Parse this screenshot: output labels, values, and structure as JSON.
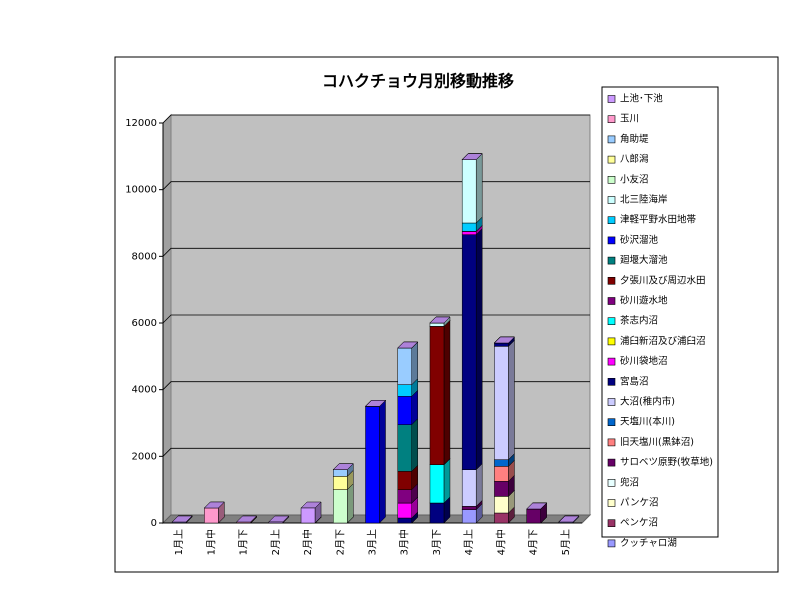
{
  "chart_data": {
    "type": "stacked-bar-3d",
    "title": "コハクチョウ月別移動推移",
    "categories": [
      "1月上",
      "1月中",
      "1月下",
      "2月上",
      "2月中",
      "2月下",
      "3月上",
      "3月中",
      "3月下",
      "4月上",
      "4月中",
      "4月下",
      "5月上"
    ],
    "ylim": [
      0,
      12000
    ],
    "yticks": [
      0,
      2000,
      4000,
      6000,
      8000,
      10000,
      12000
    ],
    "grid": true,
    "series": [
      {
        "name": "上池･下池",
        "color": "#cc99ff",
        "values": [
          0,
          0,
          0,
          30,
          450,
          0,
          0,
          0,
          0,
          0,
          0,
          0,
          0
        ]
      },
      {
        "name": "玉川",
        "color": "#ff99cc",
        "values": [
          0,
          450,
          30,
          0,
          0,
          0,
          0,
          0,
          0,
          0,
          0,
          0,
          0
        ]
      },
      {
        "name": "角助堤",
        "color": "#99ccff",
        "values": [
          0,
          0,
          0,
          0,
          0,
          200,
          0,
          1100,
          0,
          0,
          0,
          0,
          0
        ]
      },
      {
        "name": "八郎潟",
        "color": "#ffff99",
        "values": [
          0,
          0,
          0,
          0,
          0,
          400,
          0,
          0,
          0,
          0,
          0,
          0,
          0
        ]
      },
      {
        "name": "小友沼",
        "color": "#ccffcc",
        "values": [
          0,
          0,
          0,
          0,
          0,
          1000,
          0,
          0,
          0,
          0,
          0,
          0,
          0
        ]
      },
      {
        "name": "北三陸海岸",
        "color": "#ccffff",
        "values": [
          0,
          0,
          0,
          0,
          0,
          0,
          0,
          0,
          100,
          1900,
          0,
          0,
          0
        ]
      },
      {
        "name": "津軽平野水田地帯",
        "color": "#00ccff",
        "values": [
          0,
          0,
          0,
          0,
          0,
          0,
          0,
          350,
          0,
          250,
          0,
          0,
          0
        ]
      },
      {
        "name": "砂沢溜池",
        "color": "#0000ff",
        "values": [
          0,
          0,
          0,
          0,
          0,
          0,
          3500,
          850,
          0,
          0,
          0,
          0,
          0
        ]
      },
      {
        "name": "廻堰大溜池",
        "color": "#008080",
        "values": [
          0,
          0,
          0,
          0,
          0,
          0,
          0,
          1400,
          0,
          0,
          0,
          0,
          0
        ]
      },
      {
        "name": "夕張川及び周辺水田",
        "color": "#800000",
        "values": [
          0,
          0,
          0,
          0,
          0,
          0,
          0,
          550,
          4150,
          0,
          0,
          0,
          0
        ]
      },
      {
        "name": "砂川遊水地",
        "color": "#800080",
        "values": [
          0,
          0,
          0,
          0,
          0,
          0,
          0,
          400,
          0,
          0,
          0,
          0,
          0
        ]
      },
      {
        "name": "茶志内沼",
        "color": "#00ffff",
        "values": [
          0,
          0,
          0,
          0,
          0,
          0,
          0,
          0,
          1150,
          0,
          0,
          0,
          0
        ]
      },
      {
        "name": "浦臼新沼及び浦臼沼",
        "color": "#ffff00",
        "values": [
          0,
          0,
          0,
          0,
          0,
          0,
          0,
          0,
          0,
          0,
          0,
          0,
          0
        ]
      },
      {
        "name": "砂川袋地沼",
        "color": "#ff00ff",
        "values": [
          0,
          0,
          0,
          0,
          0,
          0,
          0,
          450,
          0,
          100,
          0,
          0,
          0
        ]
      },
      {
        "name": "宮島沼",
        "color": "#000080",
        "values": [
          0,
          0,
          0,
          0,
          0,
          0,
          0,
          150,
          600,
          7050,
          100,
          0,
          0
        ]
      },
      {
        "name": "大沼(稚内市)",
        "color": "#ccccff",
        "values": [
          0,
          0,
          0,
          0,
          0,
          0,
          0,
          0,
          0,
          1100,
          3400,
          0,
          0
        ]
      },
      {
        "name": "天塩川(本川)",
        "color": "#0066cc",
        "values": [
          0,
          0,
          0,
          0,
          0,
          0,
          0,
          0,
          0,
          0,
          200,
          0,
          0
        ]
      },
      {
        "name": "旧天塩川(黒鉢沼)",
        "color": "#ff8080",
        "values": [
          0,
          0,
          0,
          0,
          0,
          0,
          0,
          0,
          0,
          0,
          450,
          0,
          0
        ]
      },
      {
        "name": "サロベツ原野(牧草地)",
        "color": "#660066",
        "values": [
          0,
          0,
          0,
          0,
          0,
          0,
          0,
          0,
          0,
          100,
          450,
          420,
          0
        ]
      },
      {
        "name": "兜沼",
        "color": "#e8ffff",
        "values": [
          0,
          0,
          0,
          0,
          0,
          0,
          0,
          0,
          0,
          0,
          0,
          0,
          0
        ]
      },
      {
        "name": "パンケ沼",
        "color": "#ffffcc",
        "values": [
          0,
          0,
          0,
          0,
          0,
          0,
          0,
          0,
          0,
          0,
          500,
          0,
          0
        ]
      },
      {
        "name": "ペンケ沼",
        "color": "#993366",
        "values": [
          0,
          0,
          0,
          0,
          0,
          0,
          0,
          0,
          0,
          0,
          300,
          0,
          0
        ]
      },
      {
        "name": "クッチャロ湖",
        "color": "#9999ff",
        "values": [
          30,
          0,
          0,
          0,
          0,
          0,
          0,
          0,
          0,
          400,
          0,
          0,
          30
        ]
      }
    ]
  }
}
